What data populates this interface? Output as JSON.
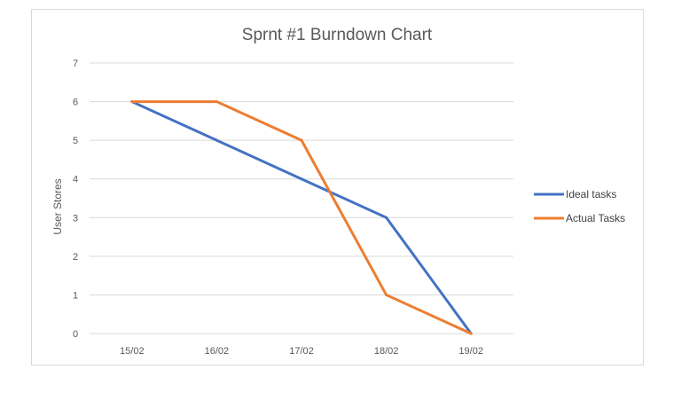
{
  "chart_data": {
    "type": "line",
    "title": "Sprnt #1 Burndown Chart",
    "xlabel": "",
    "ylabel": "User Stores",
    "categories": [
      "15/02",
      "16/02",
      "17/02",
      "18/02",
      "19/02"
    ],
    "ylim": [
      0,
      7
    ],
    "yticks": [
      0,
      1,
      2,
      3,
      4,
      5,
      6,
      7
    ],
    "grid": true,
    "legend_position": "right",
    "series": [
      {
        "name": "Ideal tasks",
        "color": "#4472c4",
        "values": [
          6,
          5,
          4,
          3,
          0
        ]
      },
      {
        "name": "Actual Tasks",
        "color": "#ed7d31",
        "values": [
          6,
          6,
          5,
          1,
          0
        ]
      }
    ]
  }
}
